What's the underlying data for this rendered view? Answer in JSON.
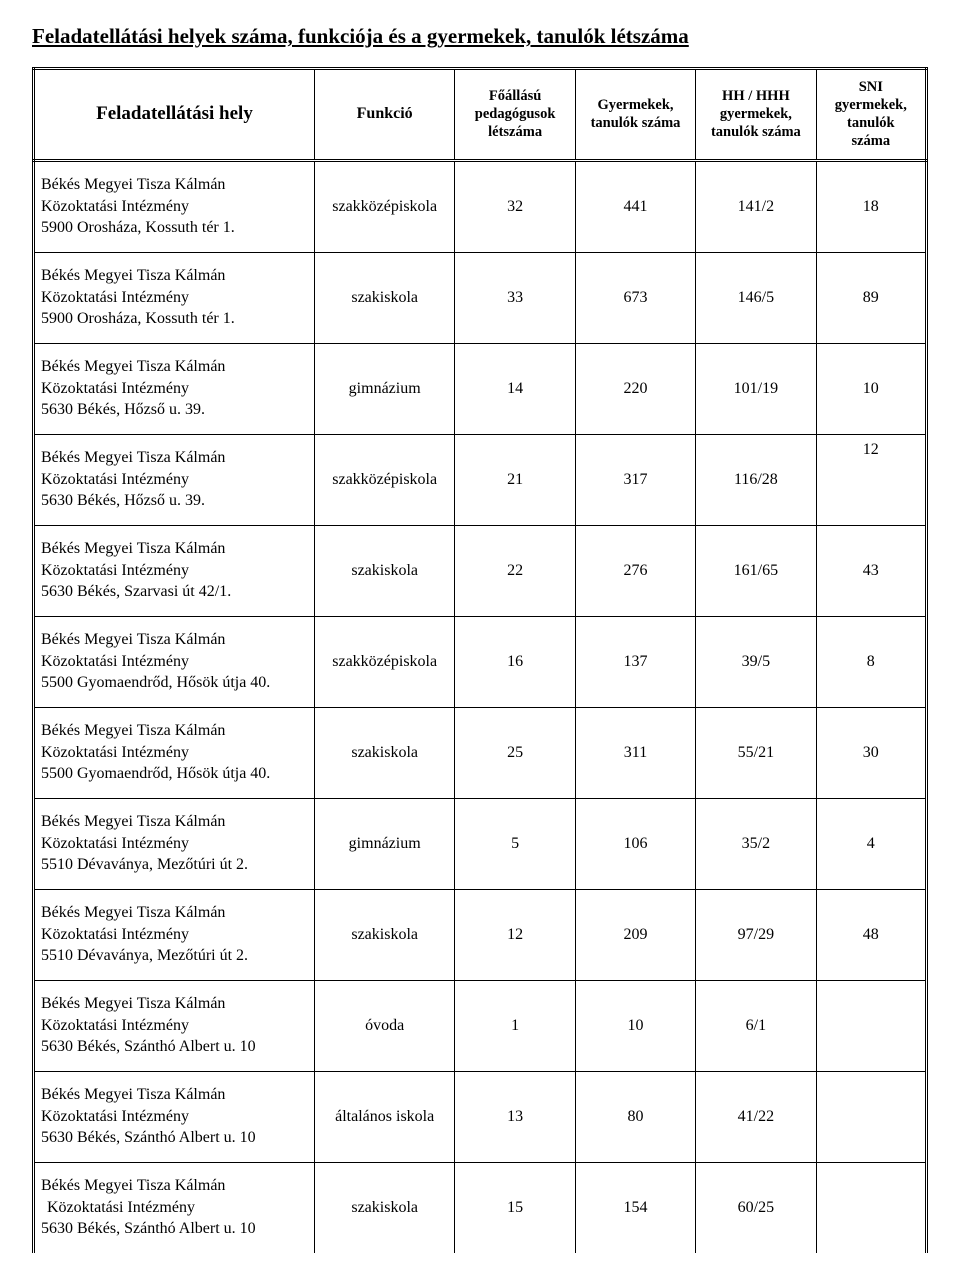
{
  "title": "Feladatellátási helyek száma, funkciója és a gyermekek, tanulók létszáma",
  "headers": {
    "col1": "Feladatellátási hely",
    "col2": "Funkció",
    "col3a": "Főállású",
    "col3b": "pedagógusok",
    "col3c": "létszáma",
    "col4a": "Gyermekek,",
    "col4b": "tanulók száma",
    "col5a": "HH / HHH",
    "col5b": "gyermekek,",
    "col5c": "tanulók száma",
    "col6a": "SNI",
    "col6b": "gyermekek,",
    "col6c": "tanulók",
    "col6d": "száma"
  },
  "org_line1": "Békés Megyei Tisza Kálmán",
  "org_line2": "Közoktatási Intézmény",
  "rows": [
    {
      "addr": "5900 Orosháza, Kossuth tér 1.",
      "func": "szakközépiskola",
      "ped": "32",
      "tan": "441",
      "hh": "141/2",
      "sni": "18",
      "sni_top": false,
      "indent": false
    },
    {
      "addr": "5900 Orosháza, Kossuth tér 1.",
      "func": "szakiskola",
      "ped": "33",
      "tan": "673",
      "hh": "146/5",
      "sni": "89",
      "sni_top": false,
      "indent": false
    },
    {
      "addr": "5630 Békés, Hőzső u. 39.",
      "func": "gimnázium",
      "ped": "14",
      "tan": "220",
      "hh": "101/19",
      "sni": "10",
      "sni_top": false,
      "indent": false
    },
    {
      "addr": "5630 Békés, Hőzső u. 39.",
      "func": "szakközépiskola",
      "ped": "21",
      "tan": "317",
      "hh": "116/28",
      "sni": "12",
      "sni_top": true,
      "indent": false
    },
    {
      "addr": "5630 Békés, Szarvasi út 42/1.",
      "func": "szakiskola",
      "ped": "22",
      "tan": "276",
      "hh": "161/65",
      "sni": "43",
      "sni_top": false,
      "indent": false
    },
    {
      "addr": "5500 Gyomaendrőd, Hősök útja 40.",
      "func": "szakközépiskola",
      "ped": "16",
      "tan": "137",
      "hh": "39/5",
      "sni": "8",
      "sni_top": false,
      "indent": false
    },
    {
      "addr": "5500 Gyomaendrőd, Hősök útja 40.",
      "func": "szakiskola",
      "ped": "25",
      "tan": "311",
      "hh": "55/21",
      "sni": "30",
      "sni_top": false,
      "indent": false
    },
    {
      "addr": "5510 Dévaványa, Mezőtúri út 2.",
      "func": "gimnázium",
      "ped": "5",
      "tan": "106",
      "hh": "35/2",
      "sni": "4",
      "sni_top": false,
      "indent": false
    },
    {
      "addr": "5510 Dévaványa, Mezőtúri út 2.",
      "func": "szakiskola",
      "ped": "12",
      "tan": "209",
      "hh": "97/29",
      "sni": "48",
      "sni_top": false,
      "indent": false
    },
    {
      "addr": "5630 Békés, Szánthó Albert u. 10",
      "func": "óvoda",
      "ped": "1",
      "tan": "10",
      "hh": "6/1",
      "sni": "",
      "sni_top": false,
      "indent": false
    },
    {
      "addr": "5630 Békés, Szánthó Albert u. 10",
      "func": "általános iskola",
      "ped": "13",
      "tan": "80",
      "hh": "41/22",
      "sni": "",
      "sni_top": false,
      "indent": false
    },
    {
      "addr": "5630 Békés, Szánthó Albert u. 10",
      "func": "szakiskola",
      "ped": "15",
      "tan": "154",
      "hh": "60/25",
      "sni": "",
      "sni_top": false,
      "indent": true
    }
  ]
}
